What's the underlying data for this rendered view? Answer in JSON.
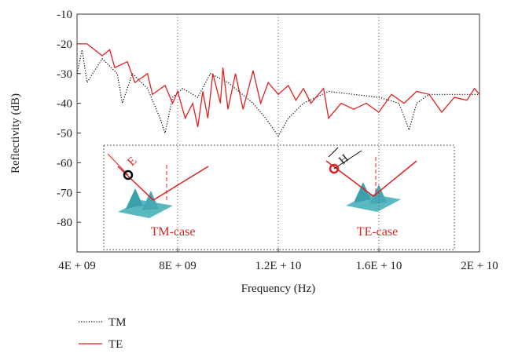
{
  "chart_data": {
    "type": "line",
    "x_label": "Frequency (Hz)",
    "y_label": "Reflectivity (dB)",
    "xlim": [
      4000000000,
      20000000000
    ],
    "xticks": [
      {
        "value": 4000000000,
        "label": "4E + 09"
      },
      {
        "value": 8000000000,
        "label": "8E + 09"
      },
      {
        "value": 12000000000,
        "label": "1.2E + 10"
      },
      {
        "value": 16000000000,
        "label": "1.6E + 10"
      },
      {
        "value": 20000000000,
        "label": "2E + 10"
      }
    ],
    "ylim": [
      -90,
      -10
    ],
    "yticks": [
      -10,
      -20,
      -30,
      -40,
      -50,
      -60,
      -70,
      -80
    ],
    "grid": "x",
    "series": [
      {
        "name": "TM",
        "color": "#000000",
        "dash": "dotted",
        "x": [
          4000000000,
          4200000000,
          4400000000,
          5000000000,
          5600000000,
          5800000000,
          6200000000,
          6800000000,
          7300000000,
          7500000000,
          7800000000,
          8200000000,
          8800000000,
          9300000000,
          10000000000,
          11000000000,
          11500000000,
          12000000000,
          12400000000,
          13000000000,
          14000000000,
          15000000000,
          16000000000,
          16800000000,
          17200000000,
          17500000000,
          18000000000,
          20000000000
        ],
        "values": [
          -30,
          -22,
          -33,
          -25,
          -30,
          -40,
          -30,
          -35,
          -45,
          -50,
          -38,
          -35,
          -38,
          -30,
          -33,
          -40,
          -45,
          -51,
          -45,
          -40,
          -36,
          -37,
          -38,
          -40,
          -49,
          -40,
          -37,
          -37
        ]
      },
      {
        "name": "TE",
        "color": "#e02020",
        "dash": "solid",
        "x": [
          4000000000,
          4400000000,
          5000000000,
          5300000000,
          5500000000,
          6000000000,
          6300000000,
          6800000000,
          7000000000,
          7500000000,
          7800000000,
          8000000000,
          8300000000,
          8600000000,
          8800000000,
          9000000000,
          9200000000,
          9400000000,
          9700000000,
          9800000000,
          10000000000,
          10300000000,
          10600000000,
          11000000000,
          11300000000,
          11600000000,
          12000000000,
          12400000000,
          12700000000,
          13000000000,
          13300000000,
          13800000000,
          14000000000,
          14500000000,
          15000000000,
          15500000000,
          16000000000,
          16500000000,
          17000000000,
          17500000000,
          18000000000,
          18500000000,
          19000000000,
          19500000000,
          19800000000,
          20000000000
        ],
        "values": [
          -20,
          -20,
          -24,
          -22,
          -28,
          -26,
          -33,
          -30,
          -37,
          -34,
          -40,
          -36,
          -45,
          -40,
          -48,
          -36,
          -45,
          -30,
          -40,
          -28,
          -42,
          -30,
          -42,
          -29,
          -40,
          -33,
          -37,
          -34,
          -39,
          -35,
          -40,
          -35,
          -45,
          -40,
          -42,
          -40,
          -43,
          -37,
          -40,
          -36,
          -37,
          -43,
          -38,
          -39,
          -35,
          -37
        ]
      }
    ],
    "annotations": [
      "E",
      "TM-case",
      "H",
      "TE-case"
    ]
  }
}
